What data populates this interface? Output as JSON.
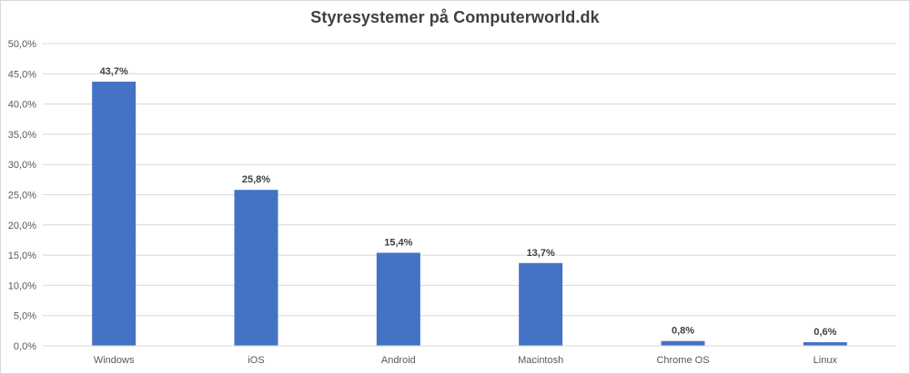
{
  "chart_data": {
    "type": "bar",
    "title": "Styresystemer på Computerworld.dk",
    "categories": [
      "Windows",
      "iOS",
      "Android",
      "Macintosh",
      "Chrome OS",
      "Linux"
    ],
    "values": [
      43.7,
      25.8,
      15.4,
      13.7,
      0.8,
      0.6
    ],
    "data_labels": [
      "43,7%",
      "25,8%",
      "15,4%",
      "13,7%",
      "0,8%",
      "0,6%"
    ],
    "xlabel": "",
    "ylabel": "",
    "ylim": [
      0,
      50
    ],
    "yticks": [
      0,
      5,
      10,
      15,
      20,
      25,
      30,
      35,
      40,
      45,
      50
    ],
    "ytick_labels": [
      "0,0%",
      "5,0%",
      "10,0%",
      "15,0%",
      "20,0%",
      "25,0%",
      "30,0%",
      "35,0%",
      "40,0%",
      "45,0%",
      "50,0%"
    ],
    "grid": true,
    "legend": "none",
    "bar_color": "#4472c4",
    "grid_color": "#d9d9d9"
  }
}
